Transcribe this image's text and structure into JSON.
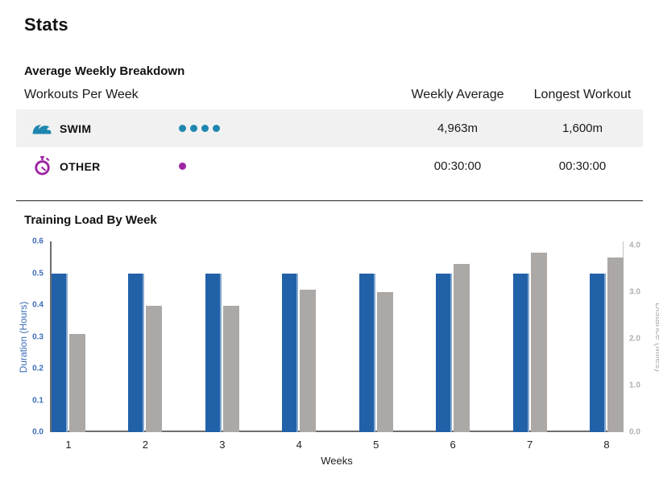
{
  "page": {
    "title": "Stats"
  },
  "breakdown": {
    "heading": "Average Weekly Breakdown",
    "columns": {
      "main": "Workouts Per Week",
      "avg": "Weekly Average",
      "longest": "Longest Workout"
    },
    "rows": [
      {
        "sport": "SWIM",
        "icon": "swim-icon",
        "color": "#1F87AF",
        "workouts_per_week": 4,
        "weekly_average": "4,963m",
        "longest_workout": "1,600m",
        "highlighted": true
      },
      {
        "sport": "OTHER",
        "icon": "stopwatch-icon",
        "color": "#9E24A3",
        "workouts_per_week": 1,
        "weekly_average": "00:30:00",
        "longest_workout": "00:30:00",
        "highlighted": false
      }
    ]
  },
  "chart_data": {
    "type": "bar",
    "title": "Training Load By Week",
    "xlabel": "Weeks",
    "categories": [
      "1",
      "2",
      "3",
      "4",
      "5",
      "6",
      "7",
      "8"
    ],
    "series": [
      {
        "name": "Duration (Hours)",
        "axis": "left",
        "color": "#2161A8",
        "values": [
          0.5,
          0.5,
          0.5,
          0.5,
          0.5,
          0.5,
          0.5,
          0.5
        ]
      },
      {
        "name": "Distance (Miles)",
        "axis": "right",
        "color": "#ACA8A6",
        "values": [
          2.1,
          2.7,
          2.7,
          3.05,
          3.0,
          3.6,
          3.85,
          3.75
        ]
      }
    ],
    "left_axis": {
      "label": "Duration (Hours)",
      "min": 0,
      "max": 0.6,
      "ticks": [
        "0.0",
        "0.1",
        "0.2",
        "0.3",
        "0.4",
        "0.5",
        "0.6"
      ],
      "color": "#3A6CB7"
    },
    "right_axis": {
      "label": "Distance (Miles)",
      "min": 0,
      "max": 4.0,
      "ticks": [
        "0.0",
        "1.0",
        "2.0",
        "3.0",
        "4.0"
      ],
      "color": "#B3AFAD"
    },
    "grid": false,
    "legend": "none"
  }
}
